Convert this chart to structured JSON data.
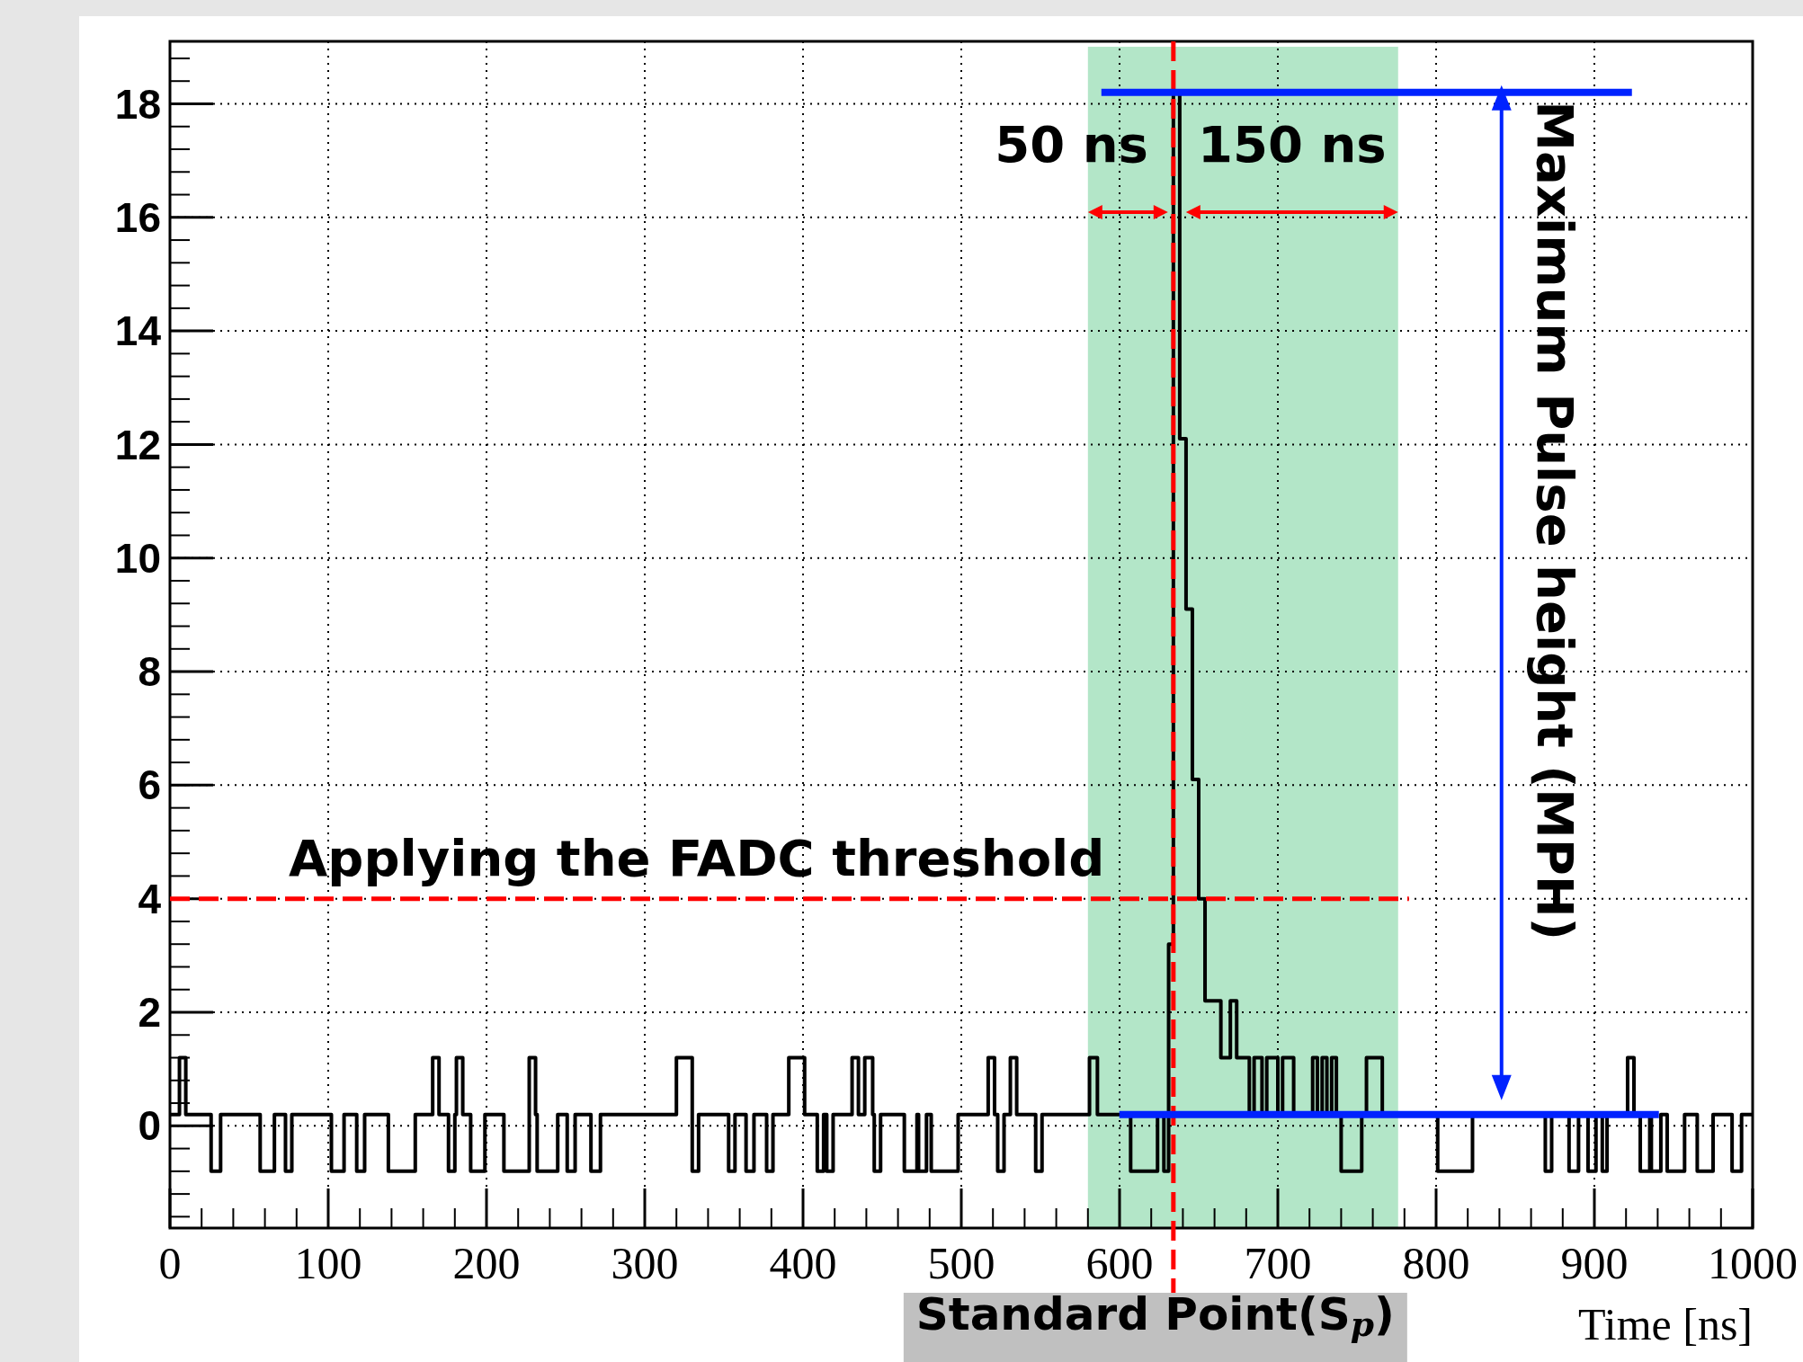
{
  "chart_data": {
    "type": "step",
    "xlabel": "Time [ns]",
    "x": [
      0,
      6,
      10,
      26,
      32,
      57,
      66,
      73,
      77,
      102,
      110,
      118,
      123,
      138,
      155,
      166,
      170,
      176,
      180,
      181,
      185,
      190,
      199,
      211,
      227,
      231,
      232,
      245,
      251,
      256,
      266,
      272,
      320,
      330,
      334,
      353,
      357,
      364,
      369,
      377,
      381,
      391,
      401,
      409,
      413,
      415,
      419,
      431,
      435,
      439,
      444,
      445,
      449,
      464,
      472,
      473,
      478,
      481,
      498,
      517,
      521,
      523,
      527,
      531,
      535,
      547,
      551,
      581,
      586,
      607,
      624,
      628,
      631,
      634,
      638,
      642,
      646,
      650,
      654,
      664,
      670,
      674,
      682,
      685,
      690,
      693,
      700,
      703,
      710,
      722,
      725,
      728,
      731,
      734,
      737,
      740,
      753,
      756,
      766,
      801,
      823,
      869,
      873,
      884,
      890,
      896,
      901,
      905,
      908,
      921,
      925,
      929,
      935,
      936,
      942,
      946,
      957,
      965,
      975,
      987,
      993,
      1000
    ],
    "series": [
      {
        "color": "#000000",
        "values": [
          0.2,
          1.2,
          0.2,
          -0.8,
          0.2,
          -0.8,
          0.2,
          -0.8,
          0.2,
          -0.8,
          0.2,
          -0.8,
          0.2,
          -0.8,
          0.2,
          1.2,
          0.2,
          -0.8,
          0.2,
          1.2,
          0.2,
          -0.8,
          0.2,
          -0.8,
          1.2,
          0.2,
          -0.8,
          0.2,
          -0.8,
          0.2,
          -0.8,
          0.2,
          1.2,
          -0.8,
          0.2,
          -0.8,
          0.2,
          -0.8,
          0.2,
          -0.8,
          0.2,
          1.2,
          0.2,
          -0.8,
          0.2,
          -0.8,
          0.2,
          1.2,
          0.2,
          1.2,
          0.2,
          -0.8,
          0.2,
          -0.8,
          0.2,
          -0.8,
          0.2,
          -0.8,
          0.2,
          1.2,
          0.2,
          -0.8,
          0.2,
          1.2,
          0.2,
          -0.8,
          0.2,
          1.2,
          0.2,
          -0.8,
          0.2,
          -0.8,
          3.2,
          18.2,
          12.1,
          9.1,
          6.1,
          4.0,
          2.2,
          1.2,
          2.2,
          1.2,
          0.2,
          1.2,
          0.2,
          1.2,
          0.2,
          1.2,
          0.2,
          1.2,
          0.2,
          1.2,
          0.2,
          1.2,
          0.2,
          -0.8,
          0.2,
          1.2,
          0.2,
          -0.8,
          0.2,
          -0.8,
          0.2,
          -0.8,
          0.2,
          -0.8,
          0.2,
          -0.8,
          0.2,
          1.2,
          0.2,
          -0.8,
          0.2,
          -0.8,
          0.2,
          -0.8,
          0.2,
          -0.8,
          0.2,
          -0.8,
          0.2,
          0.2
        ]
      }
    ],
    "xlim": [
      0,
      1000
    ],
    "xticks": [
      0,
      100,
      200,
      300,
      400,
      500,
      600,
      700,
      800,
      900,
      1000
    ],
    "ylim": [
      -1.8,
      19.1
    ],
    "yticks": [
      0,
      2,
      4,
      6,
      8,
      10,
      12,
      14,
      16,
      18
    ],
    "grid": true,
    "bands": [
      {
        "axis": "x",
        "from": 580,
        "to": 776,
        "color": "#b3e6c8"
      }
    ],
    "ref_lines": [
      {
        "axis": "x",
        "value": 634,
        "label": "Standard Point(S$_{p}$)",
        "color": "#ff0000",
        "line_style": "dashed"
      },
      {
        "axis": "y",
        "value": 4,
        "label": "Applying the FADC threshold",
        "color": "#ff0000",
        "line_style": "dashed"
      },
      {
        "axis": "y",
        "value": 18.2,
        "color": "#0022ff",
        "line_style": "solid"
      },
      {
        "axis": "y",
        "value": 0.2,
        "color": "#0022ff",
        "line_style": "solid"
      }
    ],
    "annotations": [
      "50 ns",
      "150 ns",
      "Maximum Pulse height (MPH)"
    ]
  }
}
